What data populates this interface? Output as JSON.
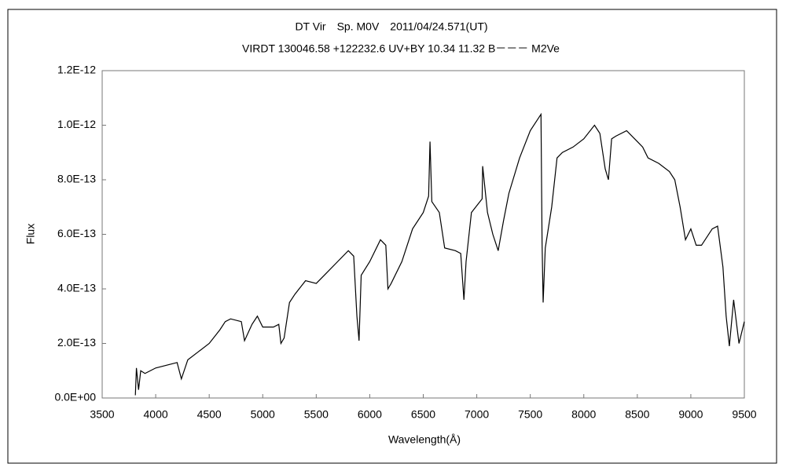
{
  "chart_data": {
    "type": "line",
    "title": "DT Vir　Sp. M0V　2011/04/24.571(UT)",
    "subtitle": "VIRDT 130046.58 +122232.6 UV+BY 10.34 11.32 B－－－ M2Ve",
    "xlabel": "Wavelength(Å)",
    "ylabel": "Flux",
    "color": "#000000",
    "grid": false,
    "xlim": [
      3500,
      9500
    ],
    "xticks": [
      3500,
      4000,
      4500,
      5000,
      5500,
      6000,
      6500,
      7000,
      7500,
      8000,
      8500,
      9000,
      9500
    ],
    "ylim": [
      0,
      1.2e-12
    ],
    "yticks": [
      {
        "value": 0,
        "label": "0.0E+00"
      },
      {
        "value": 2e-13,
        "label": "2.0E-13"
      },
      {
        "value": 4e-13,
        "label": "4.0E-13"
      },
      {
        "value": 6e-13,
        "label": "6.0E-13"
      },
      {
        "value": 8e-13,
        "label": "8.0E-13"
      },
      {
        "value": 1e-12,
        "label": "1.0E-12"
      },
      {
        "value": 1.2e-12,
        "label": "1.2E-12"
      }
    ],
    "x": [
      3810,
      3820,
      3840,
      3860,
      3900,
      3950,
      4000,
      4100,
      4200,
      4240,
      4300,
      4400,
      4500,
      4600,
      4650,
      4700,
      4800,
      4830,
      4900,
      4950,
      5000,
      5100,
      5150,
      5170,
      5200,
      5250,
      5300,
      5400,
      5500,
      5600,
      5700,
      5800,
      5850,
      5880,
      5900,
      5920,
      6000,
      6100,
      6150,
      6170,
      6200,
      6300,
      6400,
      6500,
      6550,
      6563,
      6580,
      6650,
      6700,
      6800,
      6850,
      6880,
      6900,
      6950,
      7050,
      7055,
      7100,
      7150,
      7200,
      7250,
      7300,
      7400,
      7500,
      7600,
      7610,
      7620,
      7640,
      7700,
      7750,
      7800,
      7900,
      8000,
      8100,
      8150,
      8200,
      8230,
      8260,
      8300,
      8400,
      8500,
      8550,
      8600,
      8700,
      8800,
      8850,
      8900,
      8950,
      9000,
      9050,
      9100,
      9200,
      9250,
      9300,
      9330,
      9360,
      9400,
      9450,
      9500
    ],
    "values": [
      1e-14,
      1.1e-13,
      3e-14,
      1e-13,
      9e-14,
      1e-13,
      1.1e-13,
      1.2e-13,
      1.3e-13,
      7e-14,
      1.4e-13,
      1.7e-13,
      2e-13,
      2.5e-13,
      2.8e-13,
      2.9e-13,
      2.8e-13,
      2.1e-13,
      2.7e-13,
      3e-13,
      2.6e-13,
      2.6e-13,
      2.7e-13,
      2e-13,
      2.2e-13,
      3.5e-13,
      3.8e-13,
      4.3e-13,
      4.2e-13,
      4.6e-13,
      5e-13,
      5.4e-13,
      5.2e-13,
      3e-13,
      2.1e-13,
      4.5e-13,
      5e-13,
      5.8e-13,
      5.6e-13,
      4e-13,
      4.2e-13,
      5e-13,
      6.2e-13,
      6.8e-13,
      7.4e-13,
      9.4e-13,
      7.2e-13,
      6.8e-13,
      5.5e-13,
      5.4e-13,
      5.3e-13,
      3.6e-13,
      5e-13,
      6.8e-13,
      7.3e-13,
      8.5e-13,
      6.8e-13,
      6e-13,
      5.4e-13,
      6.5e-13,
      7.5e-13,
      8.8e-13,
      9.8e-13,
      1.04e-12,
      5.7e-13,
      3.5e-13,
      5.5e-13,
      7e-13,
      8.8e-13,
      9e-13,
      9.2e-13,
      9.5e-13,
      1e-12,
      9.7e-13,
      8.4e-13,
      8e-13,
      9.5e-13,
      9.6e-13,
      9.8e-13,
      9.4e-13,
      9.2e-13,
      8.8e-13,
      8.6e-13,
      8.3e-13,
      8e-13,
      7e-13,
      5.8e-13,
      6.2e-13,
      5.6e-13,
      5.6e-13,
      6.2e-13,
      6.3e-13,
      4.8e-13,
      3e-13,
      1.9e-13,
      3.6e-13,
      2e-13,
      2.8e-13
    ]
  }
}
